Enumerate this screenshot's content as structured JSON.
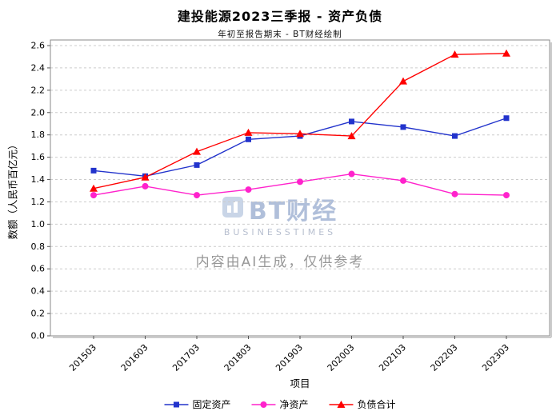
{
  "header": {
    "title": "建投能源2023三季报 - 资产负债",
    "subtitle": "年初至报告期末 - BT财经绘制"
  },
  "watermark": {
    "brand": "BT财经",
    "brand_sub": "BUSINESSTIMES",
    "disclaimer": "内容由AI生成，仅供参考"
  },
  "chart_data": {
    "type": "line",
    "title": "建投能源2023三季报 - 资产负债",
    "subtitle": "年初至报告期末 - BT财经绘制",
    "xlabel": "项目",
    "ylabel": "数额（人民币百亿元）",
    "categories": [
      "201503",
      "201603",
      "201703",
      "201803",
      "201903",
      "202003",
      "202103",
      "202203",
      "202303"
    ],
    "series": [
      {
        "name": "固定资产",
        "marker": "square",
        "color": "#2233cc",
        "values": [
          1.48,
          1.43,
          1.53,
          1.76,
          1.79,
          1.92,
          1.87,
          1.79,
          1.95
        ]
      },
      {
        "name": "净资产",
        "marker": "circle",
        "color": "#ff22cc",
        "values": [
          1.26,
          1.34,
          1.26,
          1.31,
          1.38,
          1.45,
          1.39,
          1.27,
          1.26
        ]
      },
      {
        "name": "负债合计",
        "marker": "triangle",
        "color": "#ff0000",
        "values": [
          1.32,
          1.42,
          1.65,
          1.82,
          1.81,
          1.79,
          2.28,
          2.52,
          2.53
        ]
      }
    ],
    "ylim": [
      0.0,
      2.6
    ],
    "y_tick_labels": [
      "0.0",
      "0.2",
      "0.4",
      "0.6",
      "0.8",
      "1.0",
      "1.2",
      "1.4",
      "1.6",
      "1.8",
      "2.0",
      "2.2",
      "2.4",
      "2.6"
    ],
    "grid": true,
    "grid_style": "dashed",
    "legend_position": "bottom"
  }
}
